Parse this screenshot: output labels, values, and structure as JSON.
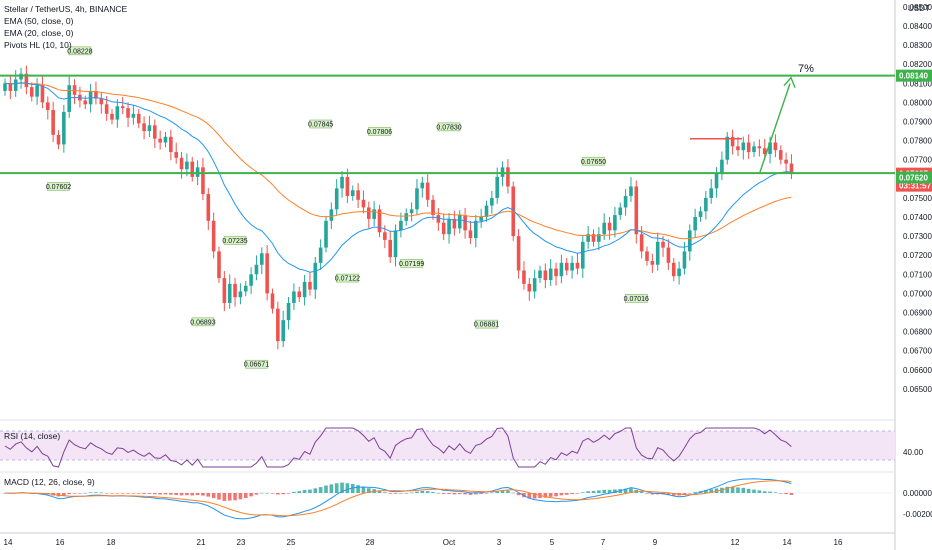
{
  "header": {
    "title": "Stellar / TetherUS, 4h, BINANCE",
    "indicators": [
      "EMA (50, close, 0)",
      "EMA (20, close, 0)",
      "Pivots HL (10, 10)"
    ]
  },
  "price_axis": {
    "unit": "USDT",
    "ticks": [
      "0.08500",
      "0.08400",
      "0.08300",
      "0.08200",
      "0.08100",
      "0.08000",
      "0.07900",
      "0.07800",
      "0.07700",
      "0.07600",
      "0.07500",
      "0.07400",
      "0.07300",
      "0.07200",
      "0.07100",
      "0.07000",
      "0.06900",
      "0.06800",
      "0.06700",
      "0.06600",
      "0.06500"
    ],
    "current_price": "0.07627",
    "countdown": "03:31:57",
    "ema_price": "0.07620",
    "target_price": "0.08140"
  },
  "annotations": {
    "target_pct": "7%",
    "pivots": [
      "0.08228",
      "0.07602",
      "0.06893",
      "0.07235",
      "0.06671",
      "0.07845",
      "0.07122",
      "0.07806",
      "0.07199",
      "0.07830",
      "0.06881",
      "0.07650",
      "0.07016"
    ]
  },
  "time_axis": {
    "labels": [
      "14",
      "16",
      "18",
      "21",
      "23",
      "25",
      "28",
      "Oct",
      "3",
      "5",
      "7",
      "9",
      "12",
      "14",
      "16"
    ]
  },
  "rsi": {
    "label": "RSI (14, close)",
    "tick": "40.00"
  },
  "macd": {
    "label": "MACD (12, 26, close, 9)",
    "ticks": [
      "0.00000",
      "-0.00200"
    ]
  },
  "colors": {
    "up": "#26a69a",
    "down": "#ef5350",
    "ema20": "#2196f3",
    "ema50": "#ff7f27",
    "level": "#3bb34a",
    "rsi": "#7e3f98"
  },
  "chart_data": {
    "type": "candlestick",
    "title": "Stellar / TetherUS, 4h, BINANCE",
    "ylim": [
      0.0645,
      0.0852
    ],
    "levels": {
      "resistance": 0.0814,
      "support": 0.0763,
      "top_resistance_short": 0.0781
    },
    "closes": [
      0.081,
      0.0806,
      0.0812,
      0.0815,
      0.0808,
      0.0803,
      0.0809,
      0.08,
      0.0796,
      0.0783,
      0.0778,
      0.0795,
      0.0809,
      0.0804,
      0.0801,
      0.0799,
      0.0806,
      0.0802,
      0.0799,
      0.0794,
      0.0791,
      0.0798,
      0.0797,
      0.0792,
      0.0794,
      0.0789,
      0.0785,
      0.0788,
      0.0781,
      0.0779,
      0.0782,
      0.0774,
      0.0771,
      0.0765,
      0.0769,
      0.0761,
      0.0766,
      0.0752,
      0.0738,
      0.0722,
      0.0708,
      0.0695,
      0.0705,
      0.0698,
      0.0701,
      0.0704,
      0.071,
      0.0715,
      0.0721,
      0.07,
      0.0692,
      0.0675,
      0.0686,
      0.0695,
      0.0701,
      0.0698,
      0.0706,
      0.0702,
      0.0716,
      0.0724,
      0.0738,
      0.0744,
      0.0755,
      0.0761,
      0.0751,
      0.0754,
      0.0749,
      0.0745,
      0.0739,
      0.0744,
      0.0732,
      0.0728,
      0.0719,
      0.0733,
      0.0738,
      0.0742,
      0.0744,
      0.0755,
      0.0758,
      0.0749,
      0.0741,
      0.0737,
      0.0731,
      0.0739,
      0.0734,
      0.0741,
      0.0733,
      0.0729,
      0.0738,
      0.074,
      0.0746,
      0.075,
      0.0761,
      0.0766,
      0.0756,
      0.073,
      0.0712,
      0.0705,
      0.0701,
      0.0708,
      0.0712,
      0.0707,
      0.0713,
      0.0709,
      0.0716,
      0.0712,
      0.0716,
      0.0713,
      0.0727,
      0.0731,
      0.0727,
      0.0731,
      0.0737,
      0.0733,
      0.0741,
      0.0745,
      0.0751,
      0.0756,
      0.0731,
      0.0722,
      0.0717,
      0.0715,
      0.0727,
      0.0724,
      0.0716,
      0.0709,
      0.0713,
      0.0722,
      0.0733,
      0.074,
      0.0743,
      0.075,
      0.0755,
      0.0763,
      0.077,
      0.0782,
      0.0777,
      0.0775,
      0.0779,
      0.0774,
      0.0777,
      0.0776,
      0.0773,
      0.0779,
      0.0775,
      0.077,
      0.0768,
      0.0763
    ]
  }
}
